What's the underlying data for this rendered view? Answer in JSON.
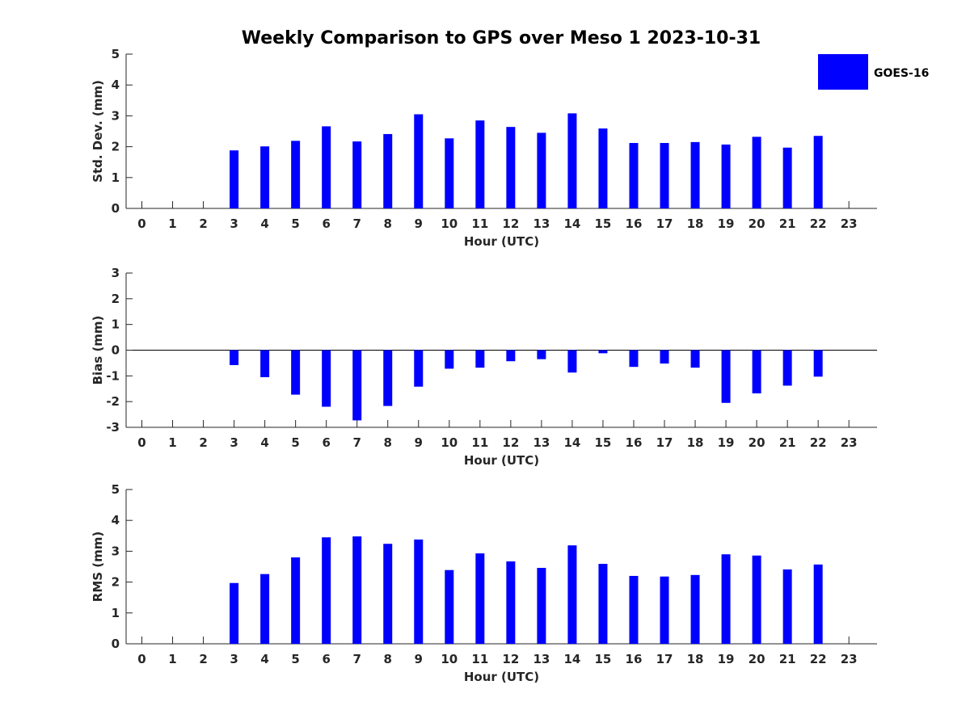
{
  "title": "Weekly Comparison to GPS over Meso 1 2023-10-31",
  "legend": {
    "label": "GOES-16",
    "color": "#0000ff",
    "placement": "top-right"
  },
  "bar_color": "#0000ff",
  "chart_data": [
    {
      "type": "bar",
      "xlabel": "Hour (UTC)",
      "ylabel": "Std. Dev. (mm)",
      "ylim": [
        0,
        5
      ],
      "yticks": [
        0,
        1,
        2,
        3,
        4,
        5
      ],
      "categories": [
        "0",
        "1",
        "2",
        "3",
        "4",
        "5",
        "6",
        "7",
        "8",
        "9",
        "10",
        "11",
        "12",
        "13",
        "14",
        "15",
        "16",
        "17",
        "18",
        "19",
        "20",
        "21",
        "22",
        "23"
      ],
      "series": [
        {
          "name": "GOES-16",
          "values": [
            null,
            null,
            null,
            1.88,
            2.01,
            2.19,
            2.66,
            2.17,
            2.41,
            3.05,
            2.27,
            2.85,
            2.64,
            2.45,
            3.08,
            2.59,
            2.12,
            2.12,
            2.15,
            2.07,
            2.32,
            1.97,
            2.35,
            null
          ]
        }
      ]
    },
    {
      "type": "bar",
      "xlabel": "Hour (UTC)",
      "ylabel": "Bias (mm)",
      "ylim": [
        -3,
        3
      ],
      "yticks": [
        -3,
        -2,
        -1,
        0,
        1,
        2,
        3
      ],
      "categories": [
        "0",
        "1",
        "2",
        "3",
        "4",
        "5",
        "6",
        "7",
        "8",
        "9",
        "10",
        "11",
        "12",
        "13",
        "14",
        "15",
        "16",
        "17",
        "18",
        "19",
        "20",
        "21",
        "22",
        "23"
      ],
      "series": [
        {
          "name": "GOES-16",
          "values": [
            null,
            null,
            null,
            -0.58,
            -1.05,
            -1.73,
            -2.2,
            -2.73,
            -2.17,
            -1.42,
            -0.72,
            -0.68,
            -0.43,
            -0.35,
            -0.87,
            -0.12,
            -0.65,
            -0.52,
            -0.68,
            -2.05,
            -1.68,
            -1.38,
            -1.03,
            null
          ]
        }
      ]
    },
    {
      "type": "bar",
      "xlabel": "Hour (UTC)",
      "ylabel": "RMS (mm)",
      "ylim": [
        0,
        5
      ],
      "yticks": [
        0,
        1,
        2,
        3,
        4,
        5
      ],
      "categories": [
        "0",
        "1",
        "2",
        "3",
        "4",
        "5",
        "6",
        "7",
        "8",
        "9",
        "10",
        "11",
        "12",
        "13",
        "14",
        "15",
        "16",
        "17",
        "18",
        "19",
        "20",
        "21",
        "22",
        "23"
      ],
      "series": [
        {
          "name": "GOES-16",
          "values": [
            null,
            null,
            null,
            1.97,
            2.26,
            2.8,
            3.45,
            3.48,
            3.24,
            3.38,
            2.39,
            2.93,
            2.67,
            2.46,
            3.19,
            2.59,
            2.2,
            2.18,
            2.23,
            2.9,
            2.86,
            2.41,
            2.57,
            null
          ]
        }
      ]
    }
  ]
}
